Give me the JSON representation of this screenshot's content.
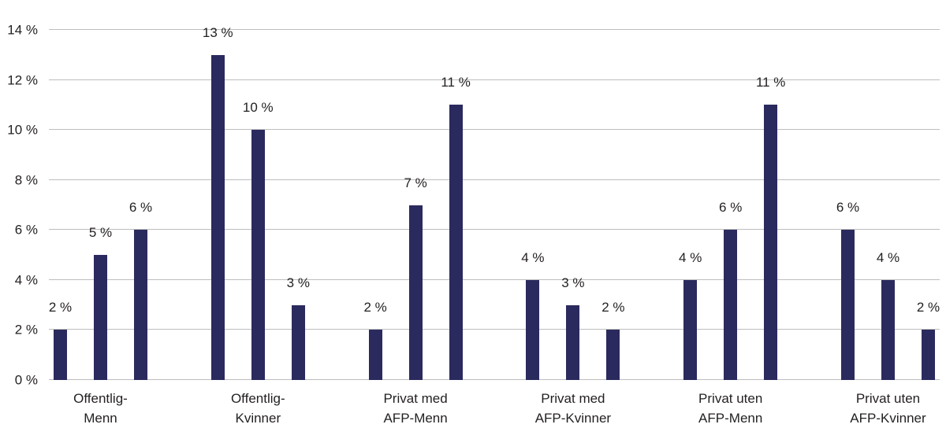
{
  "chart_data": {
    "type": "bar",
    "title": "",
    "xlabel": "",
    "ylabel": "",
    "ylim": [
      0,
      14
    ],
    "yticks": [
      0,
      2,
      4,
      6,
      8,
      10,
      12,
      14
    ],
    "ytick_label_format": "{v} %",
    "value_label_format": "{v} %",
    "grid": true,
    "legend_position": "none",
    "bar_color": "#2b2a5e",
    "gridline_color": "#bdbdbd",
    "text_color": "#231f20",
    "categories": [
      "Offentlig-\nMenn",
      "Offentlig-\nKvinner",
      "Privat med\nAFP-Menn",
      "Privat med\nAFP-Kvinner",
      "Privat uten\nAFP-Menn",
      "Privat uten\nAFP-Kvinner"
    ],
    "series": [
      {
        "name": "bar-1",
        "values": [
          2,
          13,
          2,
          4,
          4,
          6
        ]
      },
      {
        "name": "bar-2",
        "values": [
          5,
          10,
          7,
          3,
          6,
          4
        ]
      },
      {
        "name": "bar-3",
        "values": [
          6,
          3,
          11,
          2,
          11,
          2
        ]
      }
    ]
  }
}
